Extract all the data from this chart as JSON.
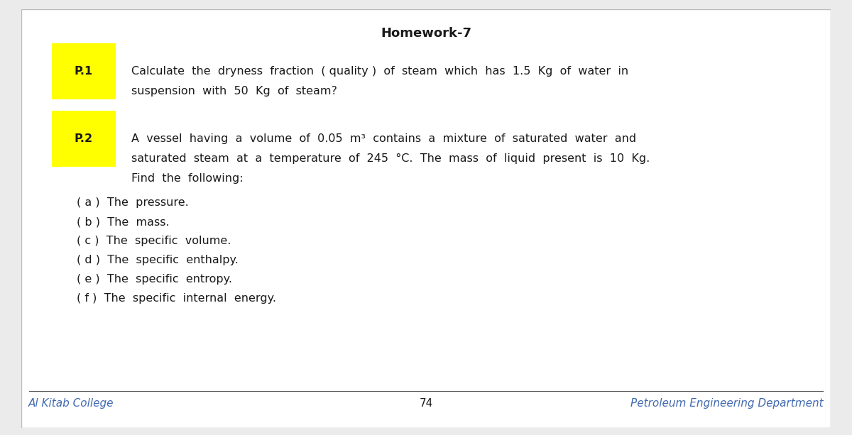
{
  "title": "Homework-7",
  "title_fontsize": 13,
  "bg_color": "#ffffff",
  "page_bg": "#ebebeb",
  "p1_label": "P.1",
  "p1_highlight": "#ffff00",
  "p1_line1": "Calculate  the  dryness  fraction  ( quality )  of  steam  which  has  1.5  Kg  of  water  in",
  "p1_line2": "suspension  with  50  Kg  of  steam?",
  "p2_label": "P.2",
  "p2_highlight": "#ffff00",
  "p2_line1": "A  vessel  having  a  volume  of  0.05  m³  contains  a  mixture  of  saturated  water  and",
  "p2_line2": "saturated  steam  at  a  temperature  of  245  °C.  The  mass  of  liquid  present  is  10  Kg.",
  "p2_line3": "Find  the  following:",
  "sub_items": [
    "( a )  The  pressure.",
    "( b )  The  mass.",
    "( c )  The  specific  volume.",
    "( d )  The  specific  enthalpy.",
    "( e )  The  specific  entropy.",
    "( f )  The  specific  internal  energy."
  ],
  "footer_left": "Al Kitab College",
  "footer_center": "74",
  "footer_right": "Petroleum Engineering Department",
  "footer_color": "#4169b0",
  "text_color": "#1a1a1a",
  "body_fontsize": 11.5,
  "footer_fontsize": 11
}
